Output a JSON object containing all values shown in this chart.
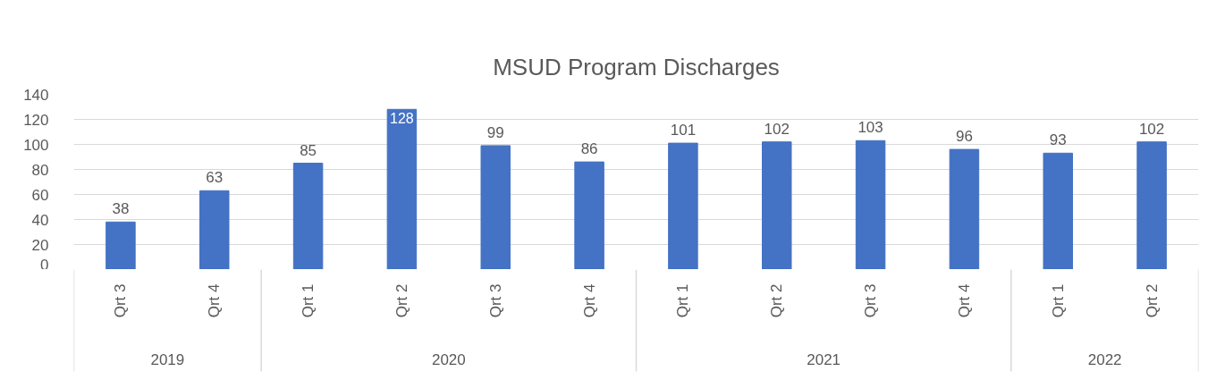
{
  "chart_data": {
    "type": "bar",
    "title": "MSUD Program Discharges",
    "categories": [
      "Qrt 3",
      "Qrt 4",
      "Qrt 1",
      "Qrt 2",
      "Qrt 3",
      "Qrt 4",
      "Qrt 1",
      "Qrt 2",
      "Qrt 3",
      "Qrt 4",
      "Qrt 1",
      "Qrt 2"
    ],
    "values": [
      38,
      63,
      85,
      128,
      99,
      86,
      101,
      102,
      103,
      96,
      93,
      102
    ],
    "color": "#4472c4",
    "ylim": [
      0,
      140
    ],
    "yticks": [
      0,
      20,
      40,
      60,
      80,
      100,
      120,
      140
    ],
    "grid": "y",
    "data_labels": true,
    "annotations": [
      "2019",
      "2020",
      "2021",
      "2022"
    ]
  }
}
